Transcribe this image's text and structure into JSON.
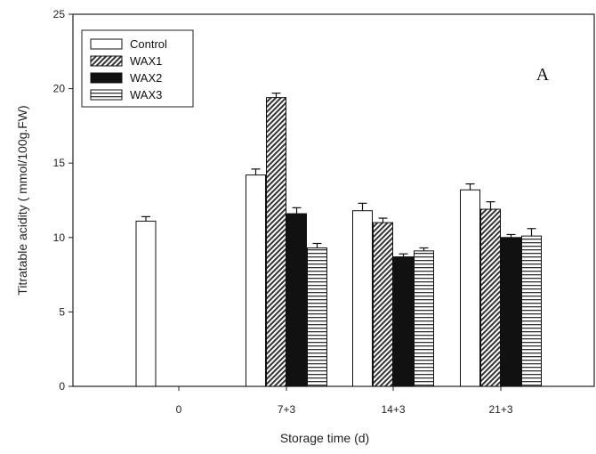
{
  "chart_data": {
    "type": "bar",
    "panel_label": "A",
    "xlabel": "Storage time (d)",
    "ylabel": "Titratable acidity ( mmol/100g.FW)",
    "ylim": [
      0,
      25
    ],
    "yticks": [
      0,
      5,
      10,
      15,
      20,
      25
    ],
    "categories": [
      "0",
      "7+3",
      "14+3",
      "21+3"
    ],
    "legend_position": "top-left",
    "series": [
      {
        "name": "Control",
        "pattern": "solid-white",
        "values": [
          11.1,
          14.2,
          11.8,
          13.2
        ],
        "errors": [
          0.3,
          0.4,
          0.5,
          0.4
        ]
      },
      {
        "name": "WAX1",
        "pattern": "diagonal-hatch",
        "values": [
          null,
          19.4,
          11.0,
          11.9
        ],
        "errors": [
          null,
          0.3,
          0.3,
          0.5
        ]
      },
      {
        "name": "WAX2",
        "pattern": "solid-black",
        "values": [
          null,
          11.6,
          8.7,
          10.0
        ],
        "errors": [
          null,
          0.4,
          0.2,
          0.2
        ]
      },
      {
        "name": "WAX3",
        "pattern": "horizontal-lines",
        "values": [
          null,
          9.3,
          9.1,
          10.1
        ],
        "errors": [
          null,
          0.3,
          0.2,
          0.5
        ]
      }
    ],
    "colors": {
      "axis": "#222222",
      "bar_stroke": "#111111",
      "black_fill": "#111111",
      "white_fill": "#ffffff"
    }
  }
}
